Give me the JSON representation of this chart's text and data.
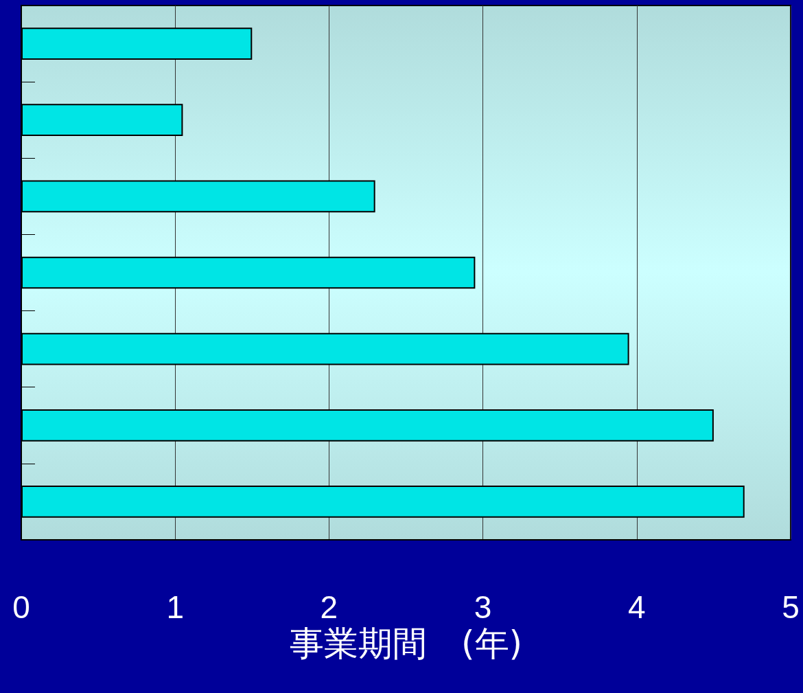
{
  "chart_data": {
    "type": "bar",
    "orientation": "horizontal",
    "xlabel": "事業期間　(年)",
    "categories": [
      null,
      null,
      null,
      null,
      null,
      null,
      null
    ],
    "values": [
      1.5,
      1.05,
      2.3,
      2.95,
      3.95,
      4.5,
      4.7
    ],
    "color": "#00e5e5",
    "xlim": [
      0,
      5
    ],
    "xticks": [
      0,
      1,
      2,
      3,
      4,
      5
    ],
    "grid": "x",
    "tick_labels": "x"
  }
}
